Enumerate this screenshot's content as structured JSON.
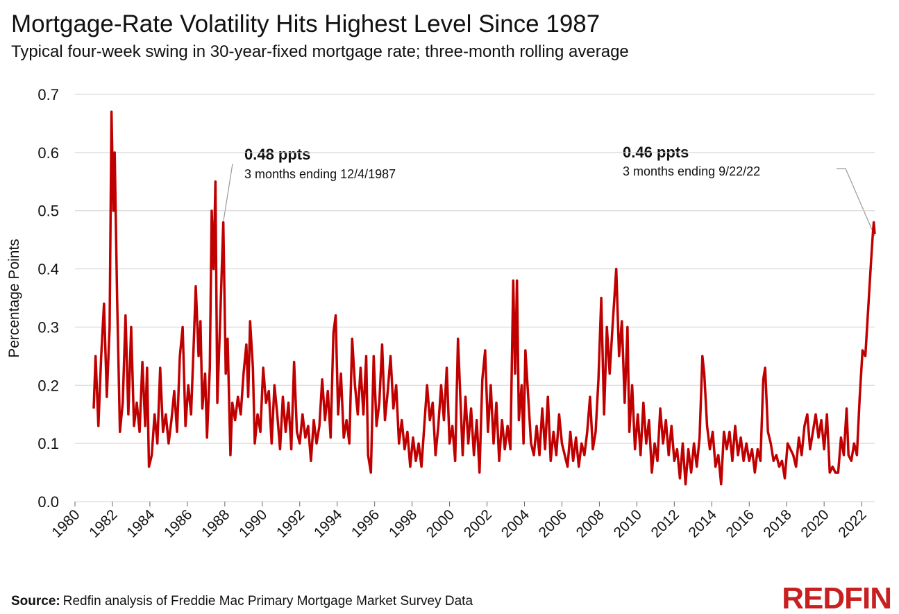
{
  "chart_data": {
    "type": "line",
    "title": "Mortgage-Rate Volatility Hits Highest Level Since 1987",
    "subtitle": "Typical four-week swing in 30-year-fixed mortgage rate; three-month rolling average",
    "y_label": "Percentage Points",
    "color": "#c00000",
    "grid": true,
    "xlim": [
      1980,
      2022.7
    ],
    "xticks": [
      1980,
      1982,
      1984,
      1986,
      1988,
      1990,
      1992,
      1994,
      1996,
      1998,
      2000,
      2002,
      2004,
      2006,
      2008,
      2010,
      2012,
      2014,
      2016,
      2018,
      2020,
      2022
    ],
    "ylim": [
      0,
      0.7
    ],
    "yticks": [
      {
        "value": 0,
        "label": "0.0"
      },
      0.1,
      0.2,
      0.3,
      0.4,
      0.5,
      0.6,
      0.7
    ],
    "annotations": [
      {
        "label": "0.48 ppts",
        "text": "3 months ending 12/4/1987"
      },
      {
        "label": "0.46 ppts",
        "text": "3 months ending 9/22/22"
      }
    ],
    "source": {
      "label": "Source:",
      "text": "Redfin analysis of Freddie Mac Primary Mortgage Market Survey Data"
    },
    "logo": "REDFIN",
    "x": [
      1981.0,
      1981.1,
      1981.25,
      1981.4,
      1981.55,
      1981.7,
      1981.85,
      1981.95,
      1982.05,
      1982.12,
      1982.25,
      1982.4,
      1982.55,
      1982.7,
      1982.85,
      1983.0,
      1983.15,
      1983.3,
      1983.45,
      1983.6,
      1983.75,
      1983.85,
      1983.95,
      1984.1,
      1984.25,
      1984.4,
      1984.55,
      1984.7,
      1984.85,
      1985.0,
      1985.15,
      1985.3,
      1985.45,
      1985.6,
      1985.75,
      1985.9,
      1986.05,
      1986.2,
      1986.35,
      1986.45,
      1986.6,
      1986.7,
      1986.8,
      1986.95,
      1987.05,
      1987.2,
      1987.3,
      1987.4,
      1987.5,
      1987.6,
      1987.75,
      1987.92,
      1988.05,
      1988.15,
      1988.3,
      1988.4,
      1988.55,
      1988.7,
      1988.85,
      1989.0,
      1989.15,
      1989.25,
      1989.35,
      1989.5,
      1989.6,
      1989.75,
      1989.9,
      1990.05,
      1990.2,
      1990.35,
      1990.5,
      1990.65,
      1990.8,
      1990.95,
      1991.1,
      1991.25,
      1991.4,
      1991.55,
      1991.7,
      1991.85,
      1992.0,
      1992.15,
      1992.3,
      1992.45,
      1992.6,
      1992.75,
      1992.9,
      1993.05,
      1993.2,
      1993.35,
      1993.5,
      1993.65,
      1993.8,
      1993.92,
      1994.05,
      1994.2,
      1994.35,
      1994.5,
      1994.65,
      1994.8,
      1994.95,
      1995.1,
      1995.25,
      1995.4,
      1995.55,
      1995.65,
      1995.8,
      1995.95,
      1996.1,
      1996.25,
      1996.4,
      1996.55,
      1996.7,
      1996.85,
      1997.0,
      1997.15,
      1997.3,
      1997.45,
      1997.6,
      1997.75,
      1997.9,
      1998.05,
      1998.2,
      1998.35,
      1998.5,
      1998.65,
      1998.8,
      1998.95,
      1999.1,
      1999.25,
      1999.4,
      1999.55,
      1999.7,
      1999.85,
      2000.0,
      2000.15,
      2000.3,
      2000.45,
      2000.55,
      2000.7,
      2000.85,
      2001.0,
      2001.15,
      2001.3,
      2001.45,
      2001.6,
      2001.75,
      2001.9,
      2002.05,
      2002.2,
      2002.35,
      2002.5,
      2002.65,
      2002.8,
      2002.95,
      2003.1,
      2003.25,
      2003.4,
      2003.5,
      2003.6,
      2003.7,
      2003.85,
      2003.95,
      2004.05,
      2004.2,
      2004.35,
      2004.5,
      2004.65,
      2004.8,
      2004.95,
      2005.1,
      2005.25,
      2005.4,
      2005.55,
      2005.7,
      2005.85,
      2006.0,
      2006.15,
      2006.3,
      2006.45,
      2006.6,
      2006.75,
      2006.9,
      2007.05,
      2007.2,
      2007.35,
      2007.5,
      2007.65,
      2007.8,
      2007.95,
      2008.1,
      2008.25,
      2008.4,
      2008.55,
      2008.7,
      2008.9,
      2009.05,
      2009.2,
      2009.35,
      2009.5,
      2009.6,
      2009.75,
      2009.9,
      2010.05,
      2010.2,
      2010.35,
      2010.5,
      2010.65,
      2010.8,
      2010.95,
      2011.1,
      2011.25,
      2011.4,
      2011.55,
      2011.7,
      2011.85,
      2012.0,
      2012.15,
      2012.3,
      2012.45,
      2012.6,
      2012.75,
      2012.9,
      2013.05,
      2013.2,
      2013.35,
      2013.5,
      2013.6,
      2013.75,
      2013.9,
      2014.05,
      2014.2,
      2014.35,
      2014.5,
      2014.65,
      2014.8,
      2014.95,
      2015.1,
      2015.25,
      2015.4,
      2015.55,
      2015.7,
      2015.85,
      2016.0,
      2016.15,
      2016.3,
      2016.45,
      2016.6,
      2016.75,
      2016.85,
      2017.0,
      2017.15,
      2017.3,
      2017.45,
      2017.6,
      2017.75,
      2017.9,
      2018.05,
      2018.2,
      2018.35,
      2018.5,
      2018.65,
      2018.8,
      2018.95,
      2019.1,
      2019.25,
      2019.4,
      2019.55,
      2019.7,
      2019.85,
      2020.0,
      2020.15,
      2020.3,
      2020.45,
      2020.6,
      2020.75,
      2020.9,
      2021.05,
      2021.2,
      2021.3,
      2021.45,
      2021.6,
      2021.75,
      2021.9,
      2022.05,
      2022.2,
      2022.35,
      2022.5,
      2022.6,
      2022.65,
      2022.7
    ],
    "values": [
      0.16,
      0.25,
      0.13,
      0.25,
      0.34,
      0.18,
      0.3,
      0.67,
      0.5,
      0.6,
      0.35,
      0.12,
      0.17,
      0.32,
      0.15,
      0.3,
      0.13,
      0.17,
      0.12,
      0.24,
      0.13,
      0.23,
      0.06,
      0.08,
      0.15,
      0.1,
      0.23,
      0.12,
      0.15,
      0.1,
      0.14,
      0.19,
      0.12,
      0.25,
      0.3,
      0.13,
      0.2,
      0.15,
      0.28,
      0.37,
      0.25,
      0.31,
      0.16,
      0.22,
      0.11,
      0.23,
      0.5,
      0.4,
      0.55,
      0.17,
      0.31,
      0.48,
      0.22,
      0.28,
      0.08,
      0.17,
      0.14,
      0.18,
      0.15,
      0.22,
      0.27,
      0.18,
      0.31,
      0.23,
      0.1,
      0.15,
      0.12,
      0.23,
      0.17,
      0.19,
      0.1,
      0.2,
      0.15,
      0.09,
      0.18,
      0.12,
      0.17,
      0.09,
      0.24,
      0.12,
      0.1,
      0.15,
      0.11,
      0.13,
      0.07,
      0.14,
      0.1,
      0.13,
      0.21,
      0.14,
      0.19,
      0.11,
      0.29,
      0.32,
      0.15,
      0.22,
      0.11,
      0.14,
      0.1,
      0.28,
      0.2,
      0.15,
      0.23,
      0.15,
      0.25,
      0.08,
      0.05,
      0.25,
      0.13,
      0.17,
      0.27,
      0.14,
      0.19,
      0.25,
      0.16,
      0.2,
      0.1,
      0.14,
      0.09,
      0.12,
      0.06,
      0.11,
      0.07,
      0.1,
      0.06,
      0.13,
      0.2,
      0.14,
      0.17,
      0.08,
      0.13,
      0.2,
      0.14,
      0.23,
      0.1,
      0.13,
      0.07,
      0.28,
      0.2,
      0.08,
      0.18,
      0.1,
      0.16,
      0.08,
      0.14,
      0.05,
      0.21,
      0.26,
      0.12,
      0.2,
      0.1,
      0.17,
      0.07,
      0.14,
      0.09,
      0.13,
      0.09,
      0.38,
      0.22,
      0.38,
      0.14,
      0.2,
      0.1,
      0.26,
      0.18,
      0.1,
      0.08,
      0.13,
      0.08,
      0.16,
      0.09,
      0.18,
      0.07,
      0.12,
      0.08,
      0.15,
      0.1,
      0.08,
      0.06,
      0.12,
      0.07,
      0.11,
      0.06,
      0.1,
      0.08,
      0.12,
      0.18,
      0.09,
      0.12,
      0.21,
      0.35,
      0.15,
      0.3,
      0.22,
      0.3,
      0.4,
      0.25,
      0.31,
      0.17,
      0.3,
      0.12,
      0.2,
      0.09,
      0.15,
      0.08,
      0.17,
      0.1,
      0.14,
      0.05,
      0.1,
      0.07,
      0.16,
      0.1,
      0.14,
      0.08,
      0.13,
      0.07,
      0.09,
      0.04,
      0.1,
      0.03,
      0.09,
      0.05,
      0.1,
      0.06,
      0.11,
      0.25,
      0.22,
      0.13,
      0.09,
      0.12,
      0.06,
      0.08,
      0.03,
      0.12,
      0.09,
      0.12,
      0.07,
      0.13,
      0.08,
      0.11,
      0.07,
      0.1,
      0.07,
      0.09,
      0.05,
      0.09,
      0.07,
      0.21,
      0.23,
      0.12,
      0.1,
      0.07,
      0.08,
      0.06,
      0.07,
      0.04,
      0.1,
      0.09,
      0.08,
      0.06,
      0.11,
      0.08,
      0.13,
      0.15,
      0.09,
      0.12,
      0.15,
      0.11,
      0.14,
      0.09,
      0.15,
      0.05,
      0.06,
      0.05,
      0.05,
      0.11,
      0.08,
      0.16,
      0.08,
      0.07,
      0.1,
      0.08,
      0.18,
      0.26,
      0.25,
      0.33,
      0.41,
      0.46,
      0.48,
      0.46
    ]
  }
}
